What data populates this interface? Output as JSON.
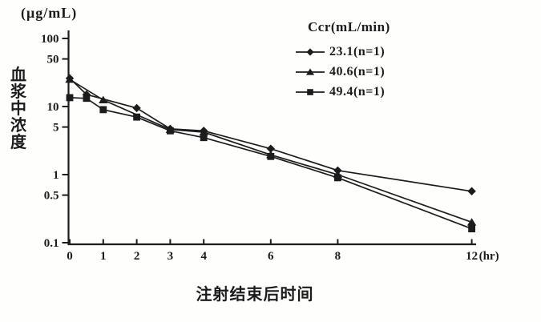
{
  "colors": {
    "ink": "#1c1c1c",
    "background": "#fefefd"
  },
  "chart_data": {
    "type": "line",
    "title": "",
    "y_scale": "log",
    "y_unit": "(μg/mL)",
    "ylabel": "血浆中浓度",
    "xlabel": "注射结束后时间",
    "x_unit": "(hr)",
    "x_ticks": [
      0,
      1,
      2,
      3,
      4,
      6,
      8,
      12
    ],
    "y_ticks": [
      100,
      50,
      10,
      5,
      1,
      0.5,
      0.1
    ],
    "xlim": [
      0,
      12.2
    ],
    "ylim": [
      0.1,
      100
    ],
    "grid": false,
    "legend": {
      "title": "Ccr(mL/min)",
      "position": "top-right"
    },
    "series": [
      {
        "label": "23.1(n=1)",
        "marker": "diamond",
        "x": [
          0,
          0.5,
          2,
          3,
          4,
          6,
          8,
          12
        ],
        "y": [
          26,
          15,
          9.5,
          4.7,
          4.4,
          2.4,
          1.15,
          0.57
        ]
      },
      {
        "label": "40.6(n=1)",
        "marker": "triangle",
        "x": [
          0,
          1,
          3,
          4,
          6,
          8,
          12
        ],
        "y": [
          25,
          12.5,
          4.6,
          4.2,
          1.95,
          1.0,
          0.2
        ]
      },
      {
        "label": "49.4(n=1)",
        "marker": "square",
        "x": [
          0,
          0.5,
          1,
          2,
          3,
          4,
          6,
          8,
          12
        ],
        "y": [
          13.5,
          13.2,
          9.0,
          7.0,
          4.4,
          3.5,
          1.85,
          0.9,
          0.16
        ]
      }
    ]
  }
}
